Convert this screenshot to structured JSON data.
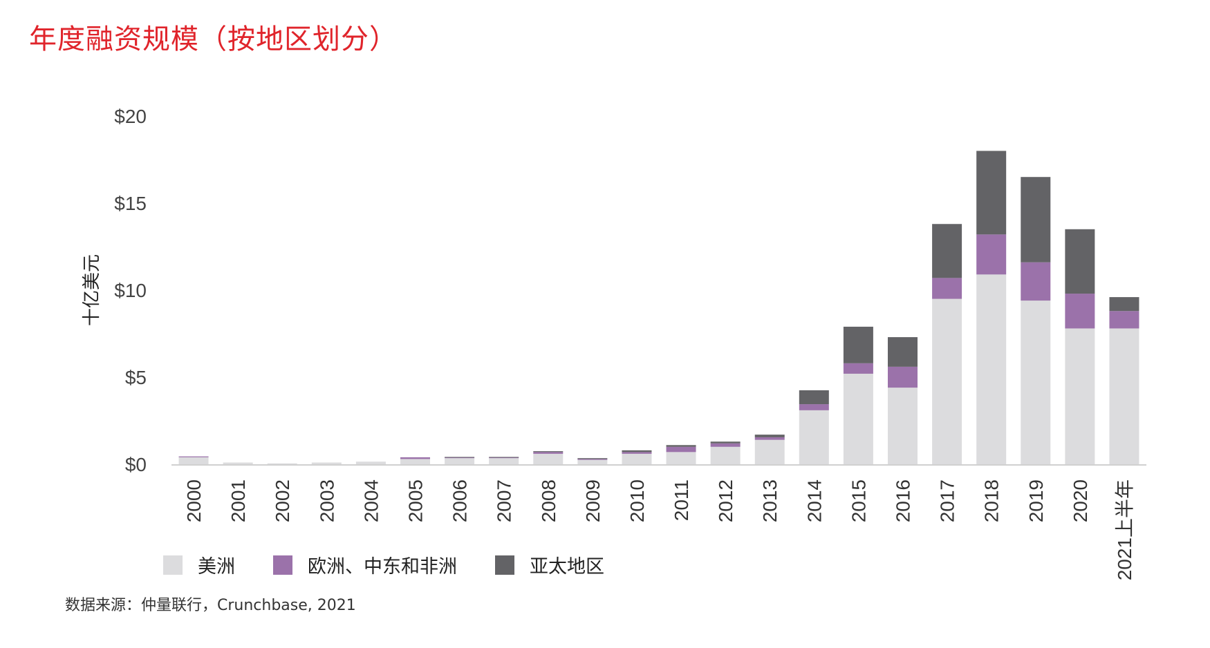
{
  "title": "年度融资规模（按地区划分）",
  "source": "数据来源：仲量联行，Crunchbase, 2021",
  "chart_data": {
    "type": "bar",
    "stacked": true,
    "title": "年度融资规模（按地区划分）",
    "ylabel": "十亿美元",
    "xlabel": "",
    "ylim": [
      0,
      20
    ],
    "yticks": [
      "$0",
      "$5",
      "$10",
      "$15",
      "$20"
    ],
    "ytick_values": [
      0,
      5,
      10,
      15,
      20
    ],
    "grid": false,
    "legend_position": "bottom-left",
    "categories": [
      "2000",
      "2001",
      "2002",
      "2003",
      "2004",
      "2005",
      "2006",
      "2007",
      "2008",
      "2009",
      "2010",
      "2011",
      "2012",
      "2013",
      "2014",
      "2015",
      "2016",
      "2017",
      "2018",
      "2019",
      "2020",
      "2021上半年"
    ],
    "series": [
      {
        "name": "美洲",
        "color": "#dcdcde",
        "values": [
          0.4,
          0.1,
          0.05,
          0.1,
          0.15,
          0.3,
          0.35,
          0.35,
          0.6,
          0.25,
          0.6,
          0.7,
          1.0,
          1.4,
          3.1,
          5.2,
          4.4,
          9.5,
          10.9,
          9.4,
          7.8,
          7.8
        ]
      },
      {
        "name": "欧洲、中东和非洲",
        "color": "#9b72aa",
        "values": [
          0.05,
          0,
          0,
          0,
          0,
          0.1,
          0.05,
          0.05,
          0.1,
          0.05,
          0.1,
          0.3,
          0.2,
          0.15,
          0.35,
          0.6,
          1.2,
          1.2,
          2.3,
          2.2,
          2.0,
          1.0
        ]
      },
      {
        "name": "亚太地区",
        "color": "#636366",
        "values": [
          0,
          0,
          0,
          0,
          0,
          0,
          0.02,
          0.02,
          0.05,
          0.05,
          0.1,
          0.1,
          0.1,
          0.15,
          0.8,
          2.1,
          1.7,
          3.1,
          4.8,
          4.9,
          3.7,
          0.8
        ]
      }
    ]
  }
}
